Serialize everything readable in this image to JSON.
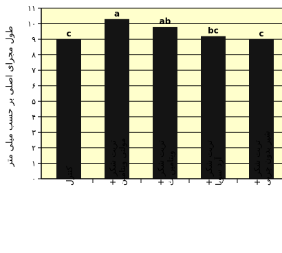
{
  "chart_data": {
    "type": "bar",
    "title": "",
    "xlabel": "",
    "ylabel": "طول مجرای اصلی بر حسب میلی متر",
    "ylim": [
      0,
      11
    ],
    "yticks": [
      0,
      1,
      2,
      3,
      4,
      5,
      6,
      7,
      8,
      9,
      10,
      11
    ],
    "ytick_labels": [
      "۰",
      "۱",
      "۲",
      "۳",
      "۴",
      "۵",
      "۶",
      "۷",
      "۸",
      "۹",
      "۱۰",
      "۱۱"
    ],
    "categories": [
      "کنترل",
      "تریت شکر + مولتی ویتامین",
      "تریت شکر + ویتامین ث",
      "تریت شکر + آرد سویا",
      "تریت شکر + شیر بدون چربی"
    ],
    "values": [
      9.0,
      10.3,
      9.8,
      9.2,
      9.0
    ],
    "letters": [
      "c",
      "a",
      "ab",
      "bc",
      "c"
    ],
    "grid": true,
    "colors": {
      "plot_background": "#ffffcc",
      "bar": "#141414",
      "grid": "#000000",
      "text": "#000000"
    }
  }
}
